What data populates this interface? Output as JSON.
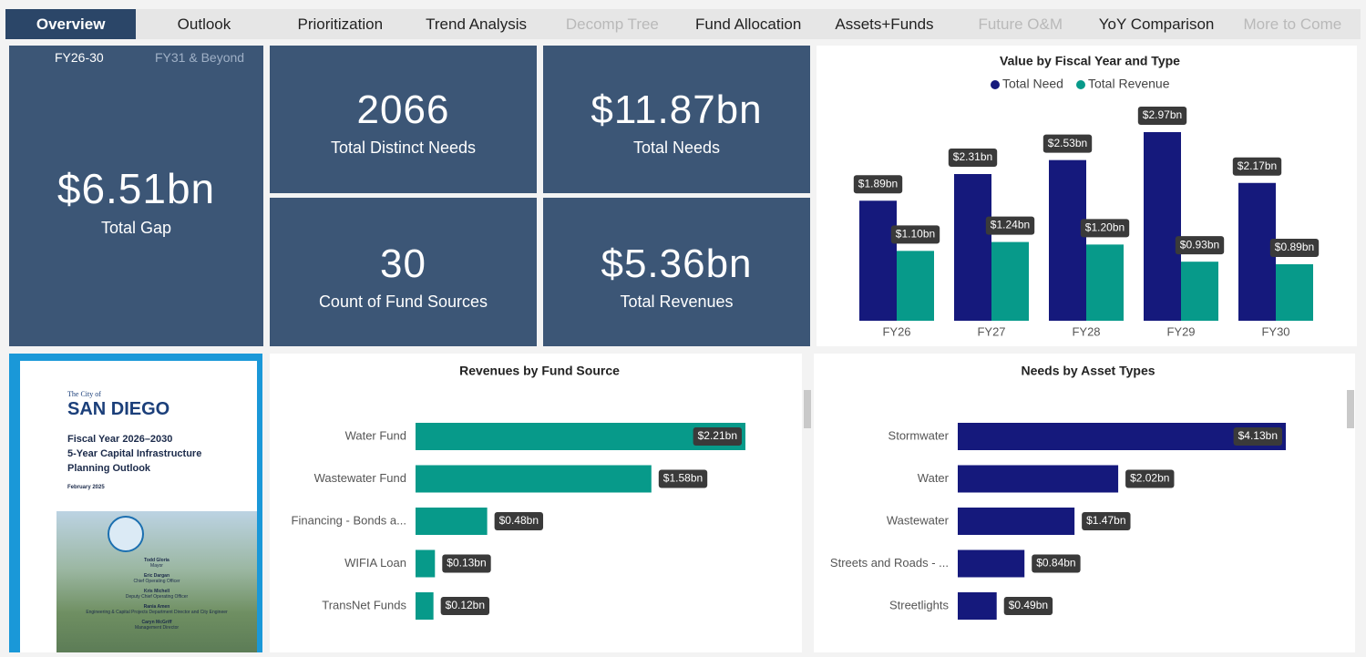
{
  "nav": {
    "tabs": [
      {
        "label": "Overview",
        "selected": true
      },
      {
        "label": "Outlook"
      },
      {
        "label": "Prioritization"
      },
      {
        "label": "Trend Analysis"
      },
      {
        "label": "Decomp Tree",
        "disabled": true
      },
      {
        "label": "Fund Allocation"
      },
      {
        "label": "Assets+Funds"
      },
      {
        "label": "Future O&M",
        "disabled": true
      },
      {
        "label": "YoY Comparison"
      },
      {
        "label": "More to Come",
        "disabled": true
      }
    ]
  },
  "filters": [
    "FY26-30",
    "FY31 & Beyond"
  ],
  "kpis": [
    {
      "value": "$6.51bn",
      "label": "Total Gap"
    },
    {
      "value": "2066",
      "label": "Total Distinct Needs"
    },
    {
      "value": "$11.87bn",
      "label": "Total Needs"
    },
    {
      "value": "30",
      "label": "Count of Fund Sources"
    },
    {
      "value": "$5.36bn",
      "label": "Total Revenues"
    }
  ],
  "cover": {
    "city_prefix": "The City of",
    "city": "SAN DIEGO",
    "title_lines": [
      "Fiscal Year 2026–2030",
      "5-Year Capital Infrastructure",
      "Planning Outlook"
    ],
    "date": "February 2025",
    "people": [
      {
        "name": "Todd Gloria",
        "role": "Mayor"
      },
      {
        "name": "Eric Dargan",
        "role": "Chief Operating Officer"
      },
      {
        "name": "Kris Michell",
        "role": "Deputy Chief Operating Officer"
      },
      {
        "name": "Rania Amen",
        "role": "Engineering & Capital Projects Department Director and City Engineer"
      },
      {
        "name": "Caryn McGriff",
        "role": "Management Director"
      }
    ]
  },
  "chart_data": [
    {
      "type": "bar",
      "title": "Value by Fiscal Year and Type",
      "categories": [
        "FY26",
        "FY27",
        "FY28",
        "FY29",
        "FY30"
      ],
      "series": [
        {
          "name": "Total Need",
          "color": "#15197c",
          "values": [
            1.89,
            2.31,
            2.53,
            2.97,
            2.17
          ],
          "value_labels": [
            "$1.89bn",
            "$2.31bn",
            "$2.53bn",
            "$2.97bn",
            "$2.17bn"
          ]
        },
        {
          "name": "Total Revenue",
          "color": "#079a8a",
          "values": [
            1.1,
            1.24,
            1.2,
            0.93,
            0.89
          ],
          "value_labels": [
            "$1.10bn",
            "$1.24bn",
            "$1.20bn",
            "$0.93bn",
            "$0.89bn"
          ]
        }
      ],
      "legend": "top"
    },
    {
      "type": "hbar",
      "title": "Revenues by Fund Source",
      "color": "#079a8a",
      "categories": [
        "Water Fund",
        "Wastewater Fund",
        "Financing - Bonds a...",
        "WIFIA Loan",
        "TransNet Funds"
      ],
      "values": [
        2.21,
        1.58,
        0.48,
        0.13,
        0.12
      ],
      "value_labels": [
        "$2.21bn",
        "$1.58bn",
        "$0.48bn",
        "$0.13bn",
        "$0.12bn"
      ]
    },
    {
      "type": "hbar",
      "title": "Needs by Asset Types",
      "color": "#15197c",
      "categories": [
        "Stormwater",
        "Water",
        "Wastewater",
        "Streets and Roads - ...",
        "Streetlights"
      ],
      "values": [
        4.13,
        2.02,
        1.47,
        0.84,
        0.49
      ],
      "value_labels": [
        "$4.13bn",
        "$2.02bn",
        "$1.47bn",
        "$0.84bn",
        "$0.49bn"
      ]
    }
  ]
}
